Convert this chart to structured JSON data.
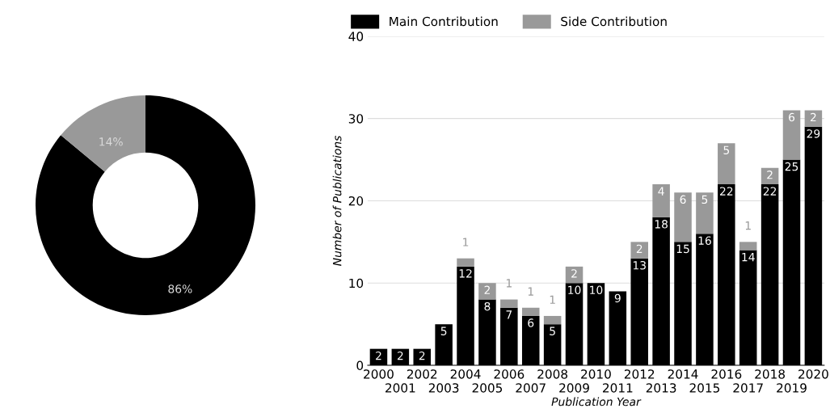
{
  "chart_data": [
    {
      "type": "donut",
      "categories": [
        null,
        null
      ],
      "values": [
        86,
        14
      ],
      "colors": [
        "#000000",
        "#999999"
      ],
      "value_labels": [
        "86%",
        "14%"
      ]
    },
    {
      "type": "bar",
      "stacked": true,
      "categories": [
        "2000",
        "2001",
        "2002",
        "2003",
        "2004",
        "2005",
        "2006",
        "2007",
        "2008",
        "2009",
        "2010",
        "2011",
        "2012",
        "2013",
        "2014",
        "2015",
        "2016",
        "2017",
        "2018",
        "2019",
        "2020"
      ],
      "series": [
        {
          "name": "Main Contribution",
          "color": "#000000",
          "values": [
            2,
            2,
            2,
            5,
            12,
            8,
            7,
            6,
            5,
            10,
            10,
            9,
            13,
            18,
            15,
            16,
            22,
            14,
            22,
            25,
            29
          ],
          "value_labels": [
            "2",
            "2",
            "2",
            "5",
            "12",
            "8",
            "7",
            "6",
            "5",
            "10",
            "10",
            "9",
            "13",
            "18",
            "15",
            "16",
            "22",
            "14",
            "22",
            "25",
            "29"
          ]
        },
        {
          "name": "Side Contribution",
          "color": "#999999",
          "values": [
            0,
            0,
            0,
            0,
            1,
            2,
            1,
            1,
            1,
            2,
            0,
            0,
            2,
            4,
            6,
            5,
            5,
            1,
            2,
            6,
            2
          ],
          "value_labels": [
            null,
            null,
            null,
            null,
            "1",
            "2",
            "1",
            "1",
            "1",
            "2",
            null,
            null,
            "2",
            "4",
            "6",
            "5",
            "5",
            "1",
            "2",
            "6",
            "2"
          ]
        }
      ],
      "ylim": [
        0,
        40
      ],
      "yticks": [
        0,
        10,
        20,
        30,
        40
      ],
      "grid": "y",
      "legend": "top left",
      "xlabel": "Publication Year",
      "ylabel": "Number of Publications"
    }
  ]
}
